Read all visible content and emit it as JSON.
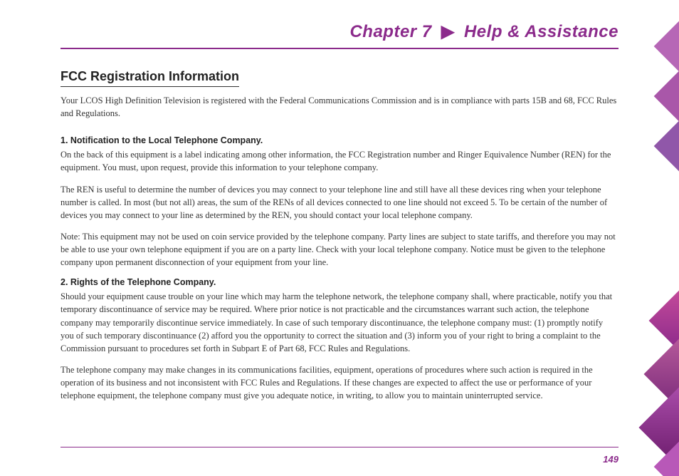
{
  "header": {
    "chapter": "Chapter 7",
    "arrow": "▶",
    "title": "Help & Assistance"
  },
  "section": {
    "title": "FCC Registration Information",
    "intro": "Your LCOS High Definition Television is registered with the Federal Communications Commission and is in compliance with parts 15B and 68, FCC Rules and Regulations."
  },
  "sub1": {
    "heading": "1.   Notification to the Local Telephone Company.",
    "p1": "On the back of this equipment is a label indicating among other information, the FCC Registration number and Ringer Equivalence Number (REN) for the equipment. You must, upon request, provide this information to your telephone company.",
    "p2": "The REN is useful to determine the number of devices you may connect to your telephone line and still have all these devices ring when your telephone number is called.  In most (but not all) areas, the sum of the RENs of all devices connected to one line should not exceed 5.  To be certain of the number of devices you may connect to your line as determined by the REN, you should contact your local telephone company.",
    "p3": "Note: This equipment may not be used on coin service provided by the telephone company. Party lines are subject to state tariffs, and therefore you may not be able to use your own telephone equipment if you are on a party line.  Check with your local telephone company. Notice must be given to the telephone company upon permanent disconnection of your equipment from your line."
  },
  "sub2": {
    "heading": "2.    Rights of the Telephone Company.",
    "p1": "Should your equipment cause trouble on your line which may harm the telephone network, the telephone company shall, where practicable, notify you that temporary discontinuance of service may be required.  Where prior notice is not practicable and the circumstances warrant such action, the telephone company  may temporarily discontinue service immediately.  In case of such temporary discontinuance, the telephone company must:  (1) promptly notify you of such temporary discontinuance  (2) afford you the opportunity to correct the situation and  (3) inform you of your right to bring a complaint to the Commission pursuant to procedures set forth in Subpart E of Part 68, FCC Rules and Regulations.",
    "p2": "The telephone company may make changes in its communications facilities, equipment, operations of procedures where such action is required in the operation of its business and not inconsistent with FCC Rules and Regulations. If these changes are expected to affect the use or performance of your telephone equipment, the telephone company must give you adequate notice, in writing, to allow you to maintain uninterrupted service."
  },
  "pageNumber": "149",
  "colors": {
    "accent": "#8b2a8b",
    "text": "#333333",
    "heading": "#222222",
    "bg": "#ffffff"
  }
}
